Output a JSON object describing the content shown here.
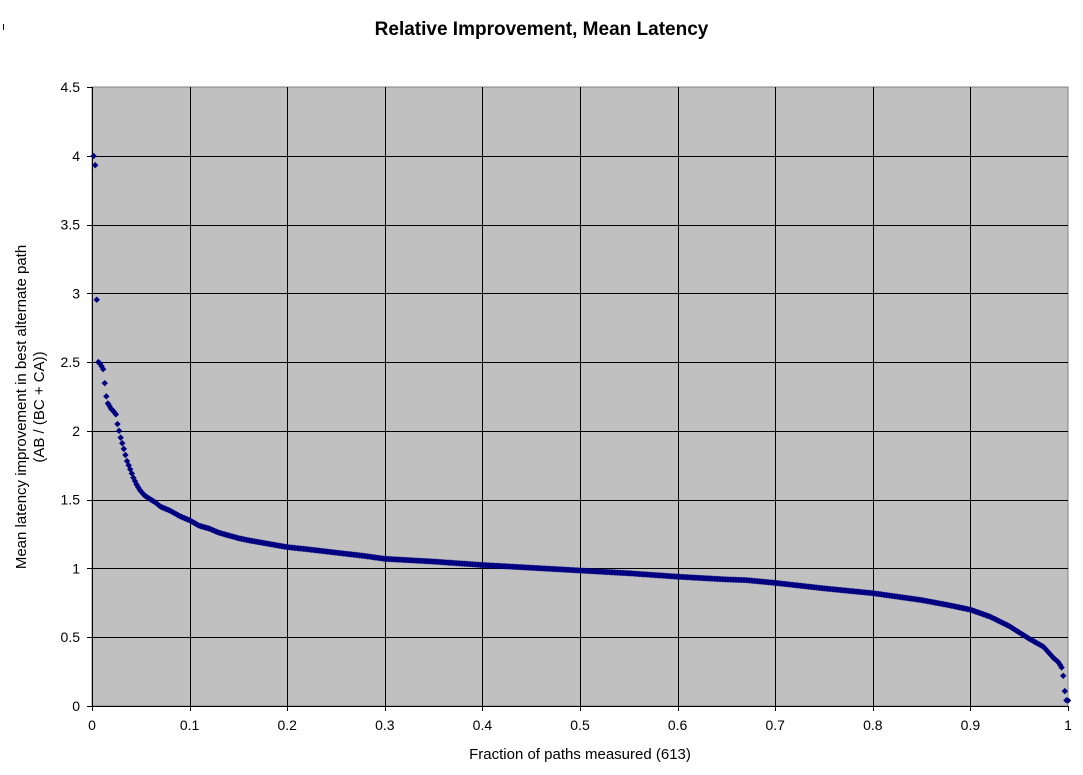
{
  "chart_data": {
    "type": "scatter",
    "title": "Relative Improvement, Mean Latency",
    "xlabel": "Fraction of paths measured (613)",
    "ylabel_lines": [
      "Mean latency improvement in best alternate path",
      "(AB / (BC + CA))"
    ],
    "xlim": [
      0,
      1
    ],
    "ylim": [
      0,
      4.5
    ],
    "x_ticks": [
      0,
      0.1,
      0.2,
      0.3,
      0.4,
      0.5,
      0.6,
      0.7,
      0.8,
      0.9,
      1
    ],
    "x_tick_labels": [
      "0",
      "0.1",
      "0.2",
      "0.3",
      "0.4",
      "0.5",
      "0.6",
      "0.7",
      "0.8",
      "0.9",
      "1"
    ],
    "y_ticks": [
      0,
      0.5,
      1,
      1.5,
      2,
      2.5,
      3,
      3.5,
      4,
      4.5
    ],
    "y_tick_labels": [
      "0",
      "0.5",
      "1",
      "1.5",
      "2",
      "2.5",
      "3",
      "3.5",
      "4",
      "4.5"
    ],
    "grid": true,
    "legend": "none",
    "plot_background": "#c0c0c0",
    "marker_color": "#000080",
    "marker": "diamond",
    "series": [
      {
        "name": "",
        "curve_anchors": [
          [
            0.0016,
            4.0
          ],
          [
            0.0033,
            3.93
          ],
          [
            0.0049,
            2.95
          ],
          [
            0.0065,
            2.5
          ],
          [
            0.0082,
            2.49
          ],
          [
            0.0098,
            2.47
          ],
          [
            0.0114,
            2.45
          ],
          [
            0.013,
            2.35
          ],
          [
            0.0147,
            2.25
          ],
          [
            0.0163,
            2.2
          ],
          [
            0.018,
            2.18
          ],
          [
            0.0196,
            2.16
          ],
          [
            0.0212,
            2.15
          ],
          [
            0.0245,
            2.12
          ],
          [
            0.0261,
            2.05
          ],
          [
            0.0294,
            1.95
          ],
          [
            0.0326,
            1.87
          ],
          [
            0.0359,
            1.78
          ],
          [
            0.0392,
            1.72
          ],
          [
            0.0424,
            1.66
          ],
          [
            0.0457,
            1.61
          ],
          [
            0.049,
            1.57
          ],
          [
            0.0539,
            1.53
          ],
          [
            0.0604,
            1.5
          ],
          [
            0.065,
            1.48
          ],
          [
            0.07,
            1.45
          ],
          [
            0.08,
            1.42
          ],
          [
            0.09,
            1.38
          ],
          [
            0.1,
            1.35
          ],
          [
            0.11,
            1.31
          ],
          [
            0.12,
            1.29
          ],
          [
            0.13,
            1.26
          ],
          [
            0.14,
            1.24
          ],
          [
            0.15,
            1.22
          ],
          [
            0.16,
            1.205
          ],
          [
            0.18,
            1.18
          ],
          [
            0.2,
            1.155
          ],
          [
            0.22,
            1.14
          ],
          [
            0.25,
            1.115
          ],
          [
            0.28,
            1.09
          ],
          [
            0.3,
            1.07
          ],
          [
            0.35,
            1.05
          ],
          [
            0.4,
            1.025
          ],
          [
            0.45,
            1.005
          ],
          [
            0.5,
            0.985
          ],
          [
            0.55,
            0.965
          ],
          [
            0.6,
            0.94
          ],
          [
            0.65,
            0.92
          ],
          [
            0.67,
            0.915
          ],
          [
            0.7,
            0.895
          ],
          [
            0.75,
            0.855
          ],
          [
            0.8,
            0.82
          ],
          [
            0.85,
            0.77
          ],
          [
            0.88,
            0.73
          ],
          [
            0.9,
            0.7
          ],
          [
            0.92,
            0.65
          ],
          [
            0.94,
            0.58
          ],
          [
            0.96,
            0.49
          ],
          [
            0.975,
            0.43
          ],
          [
            0.985,
            0.35
          ],
          [
            0.99,
            0.32
          ],
          [
            0.9935,
            0.28
          ],
          [
            0.9951,
            0.22
          ],
          [
            0.9967,
            0.11
          ],
          [
            0.9984,
            0.04
          ]
        ]
      }
    ]
  }
}
